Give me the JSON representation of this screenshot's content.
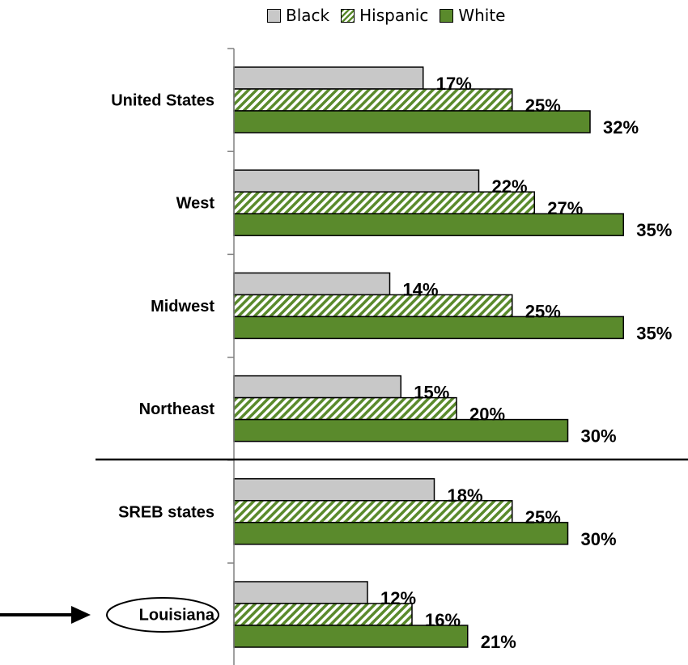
{
  "legend": {
    "black": "Black",
    "hispanic": "Hispanic",
    "white": "White"
  },
  "colors": {
    "black": "#c8c8c8",
    "hispanic_stripe": "#5a8a2c",
    "white": "#5a8a2c"
  },
  "chart_data": {
    "type": "bar",
    "orientation": "horizontal",
    "categories": [
      "United States",
      "West",
      "Midwest",
      "Northeast",
      "SREB states",
      "Louisiana"
    ],
    "series": [
      {
        "name": "Black",
        "values": [
          17,
          22,
          14,
          15,
          18,
          12
        ],
        "labels": [
          "17%",
          "22%",
          "14%",
          "15%",
          "18%",
          "12%"
        ]
      },
      {
        "name": "Hispanic",
        "values": [
          25,
          27,
          25,
          20,
          25,
          16
        ],
        "labels": [
          "25%",
          "27%",
          "25%",
          "20%",
          "25%",
          "16%"
        ]
      },
      {
        "name": "White",
        "values": [
          32,
          35,
          35,
          30,
          30,
          21
        ],
        "labels": [
          "32%",
          "35%",
          "35%",
          "30%",
          "30%",
          "21%"
        ]
      }
    ],
    "title": "",
    "xlabel": "",
    "ylabel": "",
    "xlim": [
      0,
      35
    ],
    "grid": false,
    "legend_position": "top",
    "highlighted_category": "Louisiana"
  }
}
